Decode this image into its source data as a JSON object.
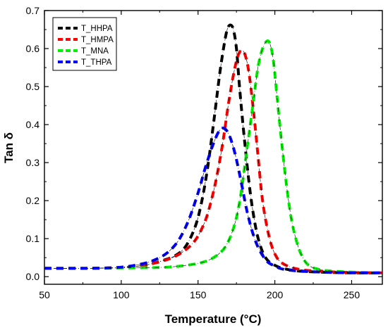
{
  "chart_data": {
    "type": "line",
    "title": "",
    "xlabel": "Temperature (°C)",
    "ylabel": "Tan δ",
    "xlim": [
      50,
      270
    ],
    "ylim": [
      -0.02,
      0.7
    ],
    "x_ticks": [
      50,
      100,
      150,
      200,
      250
    ],
    "y_ticks": [
      0.0,
      0.1,
      0.2,
      0.3,
      0.4,
      0.5,
      0.6,
      0.7
    ],
    "x_tick_labels": [
      "50",
      "100",
      "150",
      "200",
      "250"
    ],
    "y_tick_labels": [
      "0.0",
      "0.1",
      "0.2",
      "0.3",
      "0.4",
      "0.5",
      "0.6",
      "0.7"
    ],
    "grid": false,
    "legend_position": "top-left",
    "line_style": "dashed",
    "series": [
      {
        "name": "T_HHPA",
        "color": "#000000",
        "x": [
          50,
          80,
          100,
          115,
          125,
          135,
          142,
          148,
          152,
          156,
          160,
          164,
          167,
          169,
          171,
          173,
          175,
          177,
          180,
          184,
          188,
          192,
          196,
          200,
          205,
          215,
          230,
          250,
          270
        ],
        "y": [
          0.022,
          0.022,
          0.024,
          0.03,
          0.04,
          0.055,
          0.08,
          0.13,
          0.19,
          0.28,
          0.4,
          0.53,
          0.61,
          0.65,
          0.662,
          0.65,
          0.6,
          0.5,
          0.37,
          0.22,
          0.12,
          0.065,
          0.04,
          0.03,
          0.022,
          0.015,
          0.012,
          0.01,
          0.01
        ]
      },
      {
        "name": "T_HMPA",
        "color": "#ff0000",
        "x": [
          50,
          80,
          100,
          115,
          130,
          140,
          148,
          154,
          158,
          162,
          166,
          170,
          174,
          177,
          180,
          183,
          186,
          189,
          192,
          196,
          200,
          205,
          215,
          230,
          250,
          270
        ],
        "y": [
          0.022,
          0.022,
          0.024,
          0.03,
          0.045,
          0.065,
          0.095,
          0.14,
          0.19,
          0.26,
          0.35,
          0.46,
          0.55,
          0.59,
          0.59,
          0.54,
          0.44,
          0.32,
          0.2,
          0.11,
          0.06,
          0.035,
          0.02,
          0.014,
          0.011,
          0.01
        ]
      },
      {
        "name": "T_MNA",
        "color": "#00ee00",
        "x": [
          50,
          80,
          100,
          130,
          150,
          160,
          168,
          174,
          178,
          182,
          186,
          189,
          192,
          195,
          197,
          199,
          201,
          204,
          207,
          210,
          213,
          217,
          222,
          230,
          240,
          250,
          260,
          270
        ],
        "y": [
          0.022,
          0.022,
          0.023,
          0.025,
          0.035,
          0.05,
          0.08,
          0.14,
          0.22,
          0.34,
          0.46,
          0.55,
          0.6,
          0.62,
          0.61,
          0.57,
          0.49,
          0.37,
          0.26,
          0.17,
          0.11,
          0.06,
          0.03,
          0.018,
          0.014,
          0.012,
          0.011,
          0.01
        ]
      },
      {
        "name": "T_THPA",
        "color": "#0000ff",
        "x": [
          50,
          80,
          100,
          115,
          125,
          132,
          138,
          144,
          150,
          155,
          160,
          164,
          167,
          170,
          173,
          176,
          179,
          182,
          186,
          190,
          195,
          200,
          205,
          215,
          230,
          250,
          270
        ],
        "y": [
          0.022,
          0.022,
          0.025,
          0.035,
          0.05,
          0.07,
          0.1,
          0.15,
          0.22,
          0.29,
          0.35,
          0.385,
          0.39,
          0.375,
          0.34,
          0.29,
          0.23,
          0.17,
          0.11,
          0.07,
          0.04,
          0.028,
          0.02,
          0.015,
          0.012,
          0.01,
          0.01
        ]
      }
    ]
  }
}
